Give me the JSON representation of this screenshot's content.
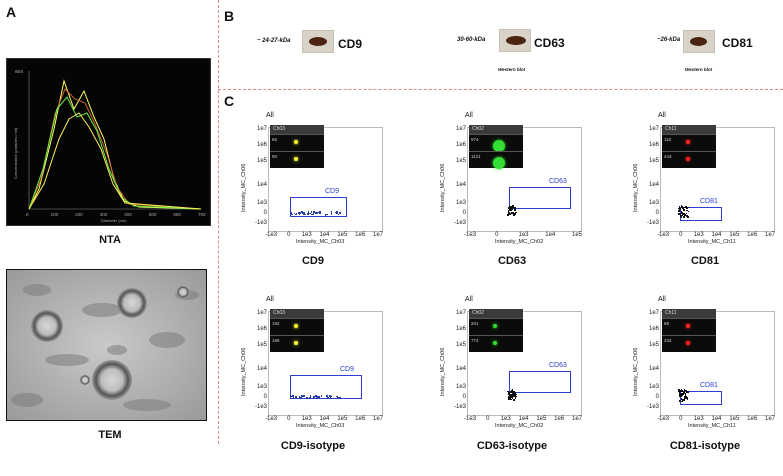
{
  "panels": {
    "a": "A",
    "b": "B",
    "c": "C"
  },
  "nta": {
    "label": "NTA",
    "y_axis_label": "Concentration (particles / ml)",
    "x_axis_label": "Diameter (nm)",
    "y_top_tick": "8E6",
    "x_ticks": [
      "0",
      "100",
      "200",
      "300",
      "400",
      "500",
      "600",
      "700"
    ]
  },
  "tem": {
    "label": "TEM"
  },
  "western": [
    {
      "kda": "~ 24-27-kDa",
      "name": "CD9",
      "sub": ""
    },
    {
      "kda": "30-60-kDa",
      "name": "CD63",
      "sub": "Western blot"
    },
    {
      "kda": "~26-kDa",
      "name": "CD81",
      "sub": "Western blot"
    }
  ],
  "plots": [
    {
      "all": "All",
      "ylabel": "Intensity_MC_Ch06",
      "xlabel": "Intensity_MC_Ch03",
      "channel": "Ch03",
      "ids": [
        "66",
        "90"
      ],
      "gate": "CD9",
      "caption": "CD9",
      "color": "#ffff33"
    },
    {
      "all": "All",
      "ylabel": "Intensity_MC_Ch06",
      "xlabel": "Intensity_MC_Ch02",
      "channel": "Ch02",
      "ids": [
        "974",
        "1121"
      ],
      "gate": "CD63",
      "caption": "CD63",
      "color": "#33dd33"
    },
    {
      "all": "All",
      "ylabel": "Intensity_MC_Ch06",
      "xlabel": "Intensity_MC_Ch11",
      "channel": "Ch11",
      "ids": [
        "110",
        "443"
      ],
      "gate": "CD81",
      "caption": "CD81",
      "color": "#ff2222"
    },
    {
      "all": "All",
      "ylabel": "Intensity_MC_Ch06",
      "xlabel": "Intensity_MC_Ch03",
      "channel": "Ch03",
      "ids": [
        "192",
        "196"
      ],
      "gate": "CD9",
      "caption": "CD9-isotype",
      "color": "#ffff33"
    },
    {
      "all": "All",
      "ylabel": "Intensity_MC_Ch06",
      "xlabel": "Intensity_MC_Ch02",
      "channel": "Ch02",
      "ids": [
        "201",
        "774"
      ],
      "gate": "CD63",
      "caption": "CD63-isotype",
      "color": "#33dd33"
    },
    {
      "all": "All",
      "ylabel": "Intensity_MC_Ch06",
      "xlabel": "Intensity_MC_Ch11",
      "channel": "Ch11",
      "ids": [
        "69",
        "234"
      ],
      "gate": "CD81",
      "caption": "CD81-isotype",
      "color": "#ff2222"
    }
  ],
  "axis_ticks": {
    "y": [
      "1e7",
      "1e6",
      "1e5",
      "1e4",
      "1e3",
      "0",
      "-1e3"
    ],
    "x_first_row": [
      "-1e3",
      "0",
      "1e3",
      "1e4",
      "1e5",
      "1e6",
      "1e7"
    ],
    "x_center_top": [
      "-1e3",
      "0",
      "1e3",
      "1e4",
      "1e5"
    ]
  }
}
